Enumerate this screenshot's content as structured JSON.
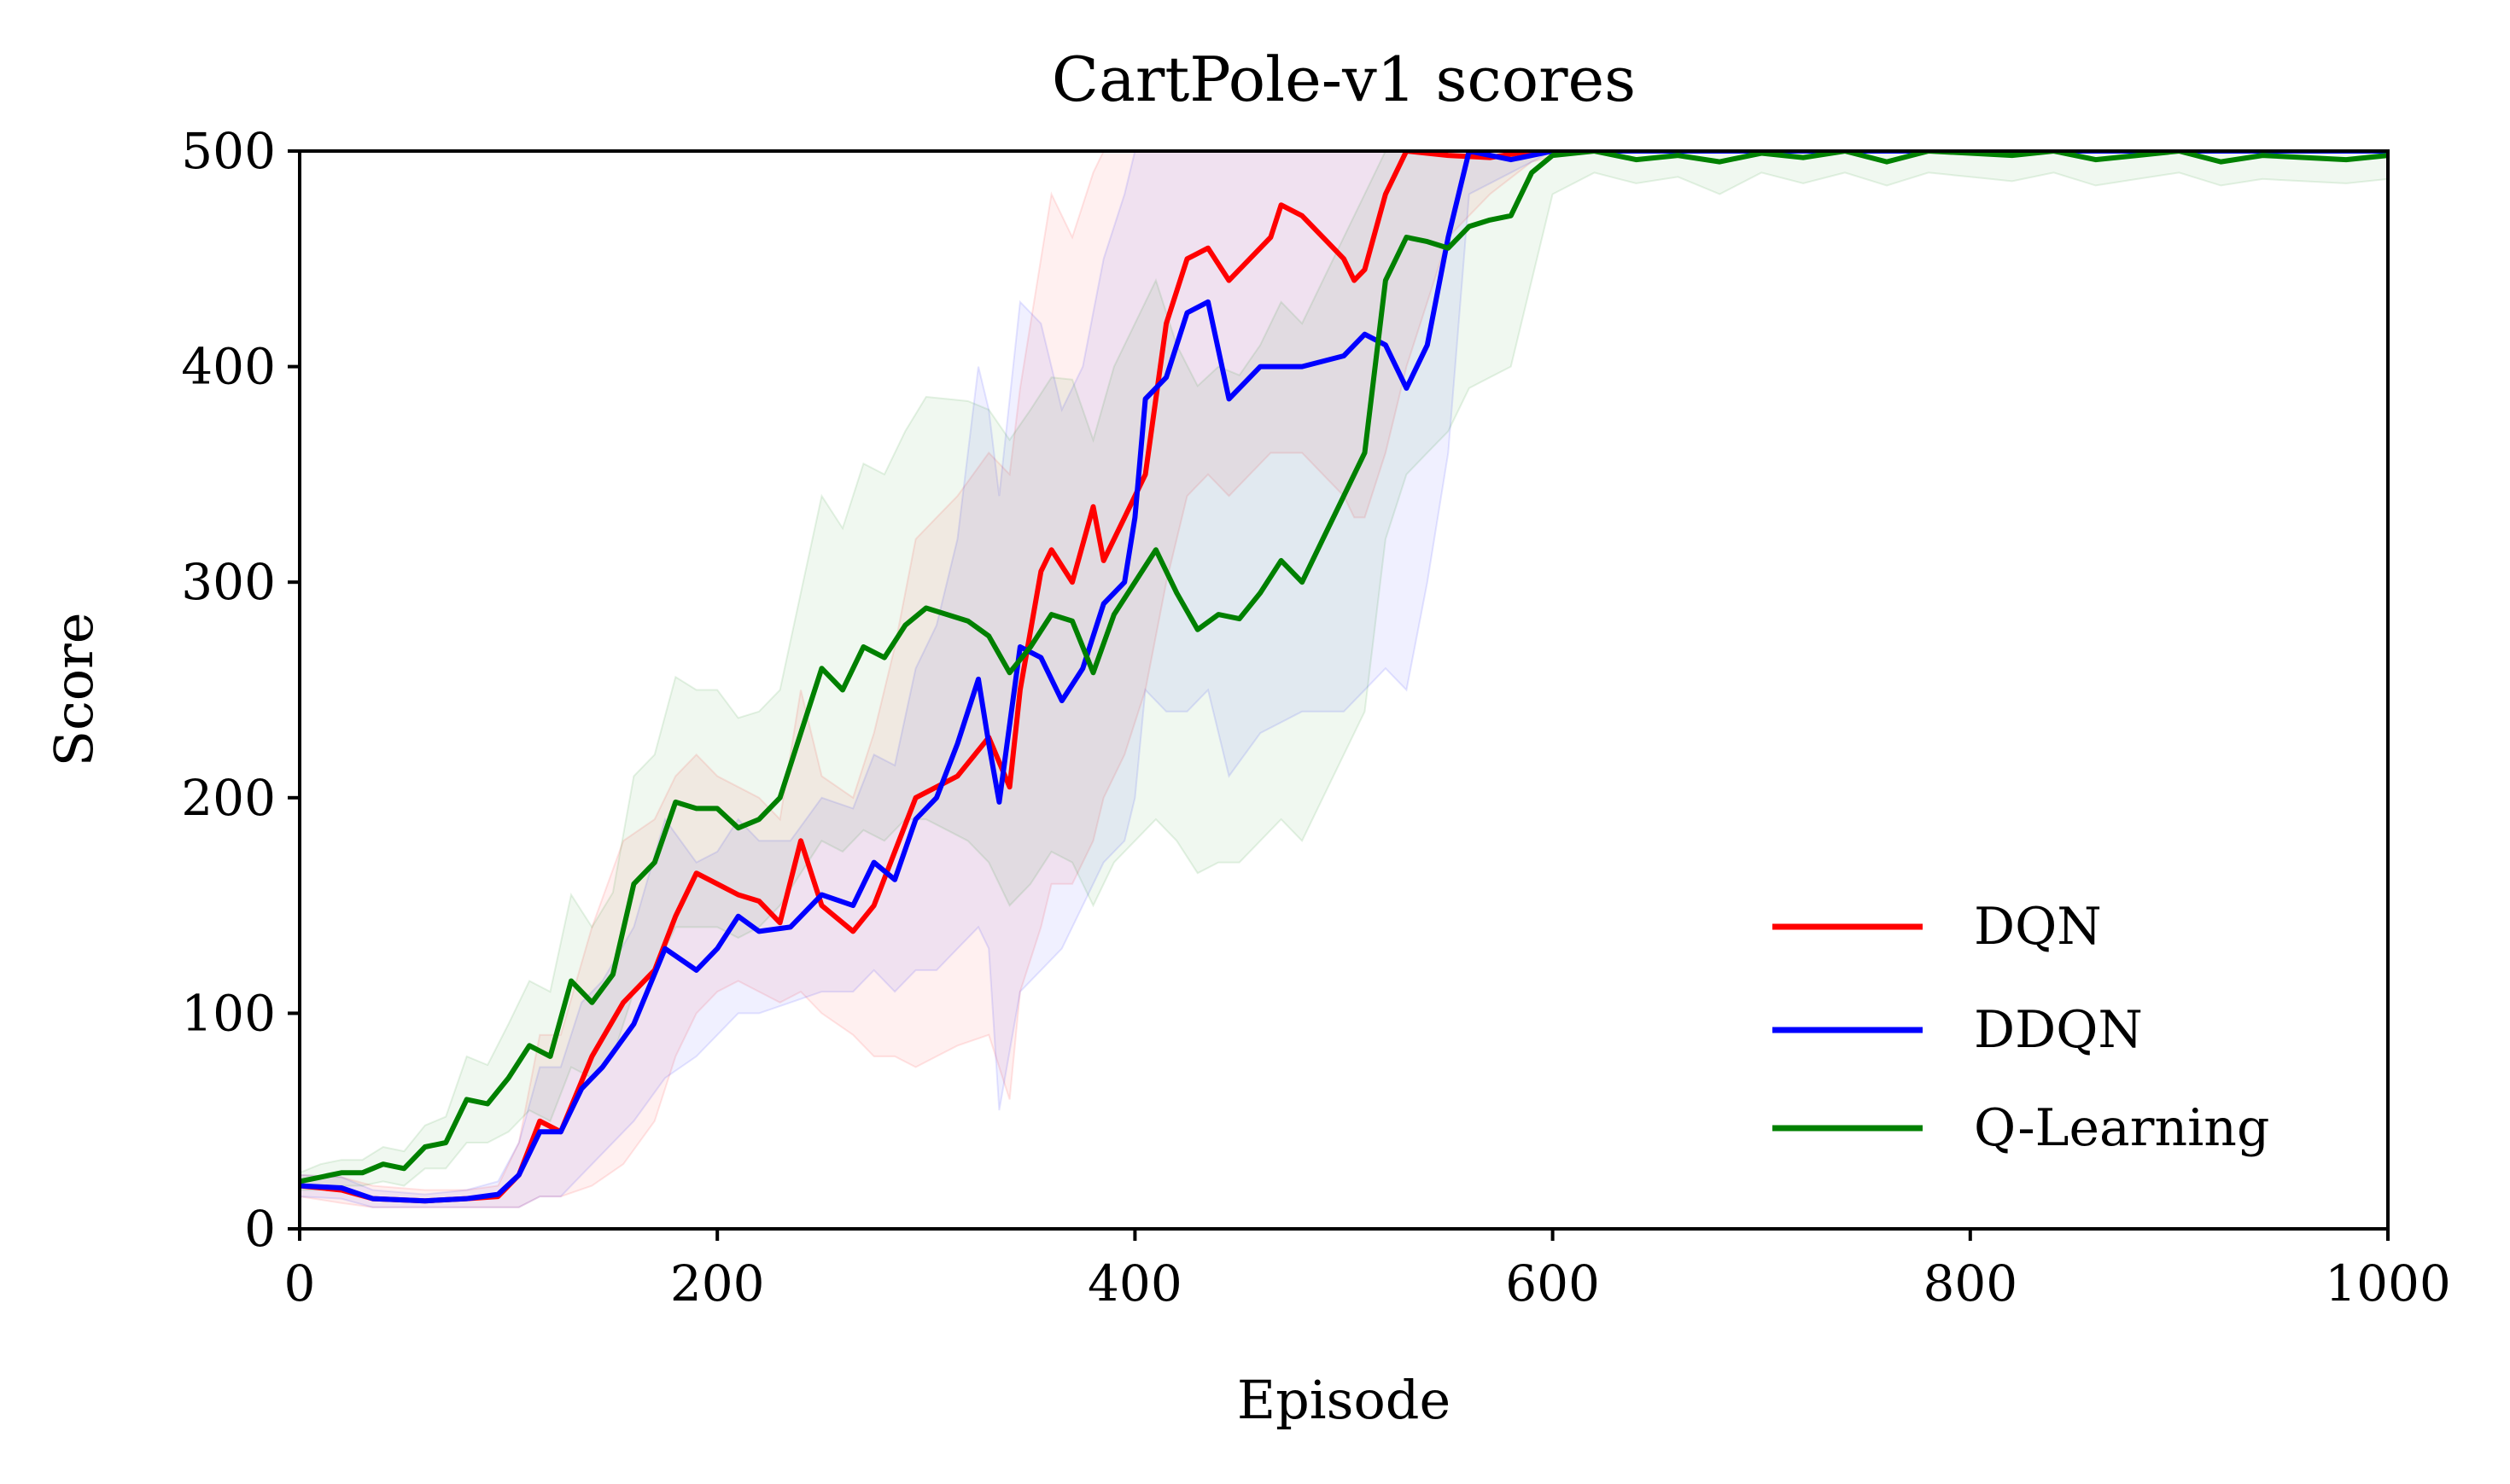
{
  "chart_data": {
    "type": "line",
    "title": "CartPole-v1 scores",
    "xlabel": "Episode",
    "ylabel": "Score",
    "xlim": [
      0,
      1000
    ],
    "ylim": [
      0,
      500
    ],
    "xticks": [
      0,
      200,
      400,
      600,
      800,
      1000
    ],
    "yticks": [
      0,
      100,
      200,
      300,
      400,
      500
    ],
    "grid": false,
    "legend_position": "lower-right",
    "series": [
      {
        "name": "DQN",
        "color": "#ff0000",
        "x": [
          0,
          20,
          35,
          60,
          80,
          95,
          105,
          115,
          125,
          140,
          155,
          170,
          180,
          190,
          200,
          210,
          220,
          230,
          240,
          250,
          265,
          275,
          285,
          295,
          305,
          315,
          330,
          340,
          345,
          355,
          360,
          370,
          380,
          385,
          395,
          405,
          415,
          425,
          435,
          445,
          455,
          465,
          470,
          480,
          490,
          500,
          505,
          510,
          520,
          530,
          550,
          570,
          590,
          610,
          640,
          680,
          720,
          760,
          800,
          840,
          880,
          920,
          960,
          1000
        ],
        "y": [
          20,
          18,
          14,
          13,
          14,
          15,
          25,
          50,
          45,
          80,
          105,
          120,
          145,
          165,
          160,
          155,
          152,
          142,
          180,
          150,
          138,
          150,
          175,
          200,
          205,
          210,
          228,
          205,
          250,
          305,
          315,
          300,
          335,
          310,
          330,
          350,
          420,
          450,
          455,
          440,
          450,
          460,
          475,
          470,
          460,
          450,
          440,
          445,
          480,
          500,
          498,
          497,
          500,
          500,
          500,
          500,
          500,
          500,
          500,
          500,
          500,
          500,
          500,
          500
        ],
        "band_low": [
          15,
          12,
          10,
          10,
          10,
          10,
          10,
          15,
          15,
          20,
          30,
          50,
          80,
          100,
          110,
          115,
          110,
          105,
          110,
          100,
          90,
          80,
          80,
          75,
          80,
          85,
          90,
          60,
          110,
          140,
          160,
          160,
          180,
          200,
          220,
          250,
          300,
          340,
          350,
          340,
          350,
          360,
          360,
          360,
          350,
          340,
          330,
          330,
          360,
          400,
          460,
          480,
          495,
          500,
          500,
          500,
          500,
          500,
          500,
          500,
          500,
          500,
          500,
          500
        ],
        "band_high": [
          25,
          24,
          20,
          18,
          18,
          20,
          40,
          90,
          90,
          140,
          180,
          190,
          210,
          220,
          210,
          205,
          200,
          190,
          250,
          210,
          200,
          230,
          270,
          320,
          330,
          340,
          360,
          350,
          390,
          450,
          480,
          460,
          490,
          500,
          500,
          500,
          500,
          500,
          500,
          500,
          500,
          500,
          500,
          500,
          500,
          500,
          500,
          500,
          500,
          500,
          500,
          500,
          500,
          500,
          500,
          500,
          500,
          500,
          500,
          500,
          500,
          500,
          500,
          500
        ]
      },
      {
        "name": "DDQN",
        "color": "#0000ff",
        "x": [
          0,
          20,
          35,
          60,
          80,
          95,
          105,
          115,
          125,
          135,
          145,
          160,
          175,
          190,
          200,
          210,
          220,
          235,
          250,
          265,
          275,
          285,
          295,
          305,
          315,
          325,
          330,
          335,
          345,
          355,
          365,
          375,
          385,
          395,
          400,
          405,
          415,
          425,
          435,
          445,
          460,
          480,
          500,
          510,
          520,
          530,
          540,
          550,
          560,
          580,
          600,
          620,
          650,
          700,
          750,
          800,
          850,
          900,
          950,
          1000
        ],
        "y": [
          20,
          19,
          14,
          13,
          14,
          16,
          25,
          45,
          45,
          65,
          75,
          95,
          130,
          120,
          130,
          145,
          138,
          140,
          155,
          150,
          170,
          162,
          190,
          200,
          225,
          255,
          225,
          198,
          270,
          265,
          245,
          260,
          290,
          300,
          330,
          385,
          395,
          425,
          430,
          385,
          400,
          400,
          405,
          415,
          410,
          390,
          410,
          460,
          500,
          496,
          500,
          500,
          500,
          500,
          500,
          500,
          500,
          500,
          500,
          500
        ],
        "band_low": [
          15,
          14,
          10,
          10,
          10,
          10,
          10,
          15,
          15,
          25,
          35,
          50,
          70,
          80,
          90,
          100,
          100,
          105,
          110,
          110,
          120,
          110,
          120,
          120,
          130,
          140,
          130,
          55,
          110,
          120,
          130,
          150,
          170,
          180,
          200,
          250,
          240,
          240,
          250,
          210,
          230,
          240,
          240,
          250,
          260,
          250,
          300,
          360,
          480,
          490,
          500,
          500,
          500,
          500,
          500,
          500,
          500,
          500,
          500,
          500
        ],
        "band_high": [
          25,
          24,
          18,
          16,
          18,
          22,
          40,
          75,
          75,
          105,
          115,
          140,
          190,
          170,
          175,
          190,
          180,
          180,
          200,
          195,
          220,
          215,
          260,
          280,
          320,
          400,
          380,
          340,
          430,
          420,
          380,
          400,
          450,
          480,
          500,
          500,
          500,
          500,
          500,
          500,
          500,
          500,
          500,
          500,
          500,
          500,
          500,
          500,
          500,
          500,
          500,
          500,
          500,
          500,
          500,
          500,
          500,
          500,
          500,
          500
        ]
      },
      {
        "name": "Q-Learning",
        "color": "#008000",
        "x": [
          0,
          10,
          20,
          30,
          40,
          50,
          60,
          70,
          80,
          90,
          100,
          110,
          120,
          130,
          140,
          150,
          160,
          170,
          180,
          190,
          200,
          210,
          220,
          230,
          240,
          250,
          260,
          270,
          280,
          290,
          300,
          310,
          320,
          330,
          340,
          350,
          360,
          370,
          380,
          390,
          400,
          410,
          420,
          430,
          440,
          450,
          460,
          470,
          480,
          490,
          500,
          510,
          520,
          530,
          540,
          550,
          560,
          570,
          580,
          590,
          600,
          620,
          640,
          660,
          680,
          700,
          720,
          740,
          760,
          780,
          800,
          820,
          840,
          860,
          880,
          900,
          920,
          940,
          960,
          980,
          1000
        ],
        "y": [
          22,
          24,
          26,
          26,
          30,
          28,
          38,
          40,
          60,
          58,
          70,
          85,
          80,
          115,
          105,
          118,
          160,
          170,
          198,
          195,
          195,
          186,
          190,
          200,
          230,
          260,
          250,
          270,
          265,
          280,
          288,
          285,
          282,
          275,
          258,
          270,
          285,
          282,
          258,
          285,
          300,
          315,
          295,
          278,
          285,
          283,
          295,
          310,
          300,
          320,
          340,
          360,
          440,
          460,
          458,
          455,
          465,
          468,
          470,
          490,
          498,
          500,
          496,
          498,
          495,
          499,
          497,
          500,
          495,
          500,
          499,
          498,
          500,
          496,
          498,
          500,
          495,
          498,
          497,
          496,
          498
        ],
        "band_low": [
          18,
          18,
          20,
          20,
          22,
          20,
          28,
          28,
          40,
          40,
          45,
          55,
          50,
          75,
          70,
          80,
          110,
          120,
          140,
          140,
          140,
          135,
          140,
          150,
          165,
          180,
          175,
          185,
          180,
          190,
          190,
          185,
          180,
          170,
          150,
          160,
          175,
          170,
          150,
          170,
          180,
          190,
          180,
          165,
          170,
          170,
          180,
          190,
          180,
          200,
          220,
          240,
          320,
          350,
          360,
          370,
          390,
          395,
          400,
          440,
          480,
          490,
          485,
          488,
          480,
          490,
          485,
          490,
          484,
          490,
          488,
          486,
          490,
          484,
          487,
          490,
          484,
          487,
          486,
          485,
          487
        ],
        "band_high": [
          26,
          30,
          32,
          32,
          38,
          36,
          48,
          52,
          80,
          76,
          95,
          115,
          110,
          155,
          140,
          156,
          210,
          220,
          256,
          250,
          250,
          237,
          240,
          250,
          295,
          340,
          325,
          355,
          350,
          370,
          386,
          385,
          384,
          380,
          366,
          380,
          395,
          394,
          366,
          400,
          420,
          440,
          410,
          391,
          400,
          396,
          410,
          430,
          420,
          440,
          460,
          480,
          500,
          500,
          500,
          500,
          500,
          500,
          500,
          500,
          500,
          500,
          500,
          500,
          500,
          500,
          500,
          500,
          500,
          500,
          500,
          500,
          500,
          500,
          500,
          500,
          500,
          500,
          500,
          500,
          500
        ]
      }
    ]
  }
}
